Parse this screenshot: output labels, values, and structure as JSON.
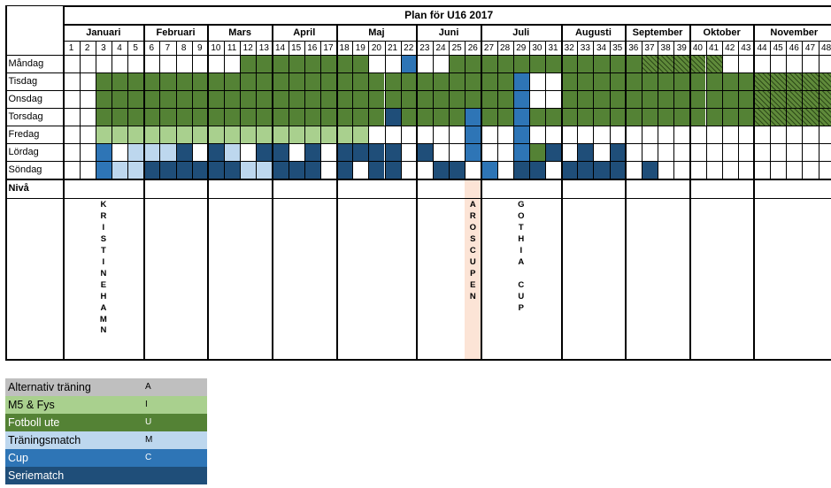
{
  "title": "Plan för U16 2017",
  "months": [
    {
      "name": "Januari",
      "first_week": 1,
      "last_week": 5
    },
    {
      "name": "Februari",
      "first_week": 6,
      "last_week": 9
    },
    {
      "name": "Mars",
      "first_week": 10,
      "last_week": 13
    },
    {
      "name": "April",
      "first_week": 14,
      "last_week": 17
    },
    {
      "name": "Maj",
      "first_week": 18,
      "last_week": 22
    },
    {
      "name": "Juni",
      "first_week": 23,
      "last_week": 26
    },
    {
      "name": "Juli",
      "first_week": 27,
      "last_week": 31
    },
    {
      "name": "Augusti",
      "first_week": 32,
      "last_week": 35
    },
    {
      "name": "September",
      "first_week": 36,
      "last_week": 39
    },
    {
      "name": "Oktober",
      "first_week": 40,
      "last_week": 43
    },
    {
      "name": "November",
      "first_week": 44,
      "last_week": 48
    }
  ],
  "weeks": [
    "1",
    "2",
    "3",
    "4",
    "5",
    "6",
    "7",
    "8",
    "9",
    "10",
    "11",
    "12",
    "13",
    "14",
    "15",
    "16",
    "17",
    "18",
    "19",
    "20",
    "21",
    "22",
    "23",
    "24",
    "25",
    "26",
    "27",
    "28",
    "29",
    "30",
    "31",
    "32",
    "33",
    "34",
    "35",
    "36",
    "37",
    "38",
    "39",
    "40",
    "41",
    "42",
    "43",
    "44",
    "45",
    "46",
    "47",
    "48"
  ],
  "days": [
    "Måndag",
    "Tisdag",
    "Onsdag",
    "Torsdag",
    "Fredag",
    "Lördag",
    "Söndag"
  ],
  "niva_label": "Nivå",
  "colors": {
    "A": "#bfbfbf",
    "I": "#a9d08e",
    "U": "#548235",
    "M": "#bdd7ee",
    "C": "#2e75b6",
    "S": "#1f4e79",
    "event_highlight": "#fce4d6",
    "hatched_green": "#548235"
  },
  "schedule": {
    "Måndag": "...........UUUUUUUU..C..UUUUUUUUUUUUHHHHH",
    "Tisdag": "..UUUUUUUUUUUUUUUUUUUUUUUUUUC..UUUUUUUUUUUUHHHHH",
    "Onsdag": "..UUUUUUUUUUUUUUUUUUUUUUUUUUC..UUUUUUUUUUUUHHHHH",
    "Torsdag": "..UUUUUUUUUUUUUUUUUUSUUUUCUUCUUUUUUUUUUUUUUHHHHH",
    "Fredag": "..IIIIIIIIIIIIIIIII......C..C..............",
    "Lördag": "..C.MMMS.SM.SS.S.SSSS.S..C..CUS.S.S..........",
    "Söndag": "..CMMSSSSSSMMSSS.S.SS..SS.C.SS.SSSS.S.........."
  },
  "events": [
    {
      "week": 3,
      "text": [
        "K",
        "R",
        "I",
        "S",
        "T",
        "I",
        "N",
        "E",
        "H",
        "A",
        "M",
        "N"
      ]
    },
    {
      "week": 26,
      "text": [
        "A",
        "R",
        "O",
        "S",
        "C",
        "U",
        "P",
        "E",
        "N"
      ]
    },
    {
      "week": 29,
      "text": [
        "G",
        "O",
        "T",
        "H",
        "I",
        "A",
        "",
        "C",
        "U",
        "P"
      ]
    }
  ],
  "legend": [
    {
      "name": "Alternativ träning",
      "code": "A",
      "color": "#bfbfbf"
    },
    {
      "name": "M5 & Fys",
      "code": "I",
      "color": "#a9d08e"
    },
    {
      "name": "Fotboll ute",
      "code": "U",
      "color": "#548235",
      "text_color": "#ffffff"
    },
    {
      "name": "Träningsmatch",
      "code": "M",
      "color": "#bdd7ee"
    },
    {
      "name": "Cup",
      "code": "C",
      "color": "#2e75b6",
      "text_color": "#ffffff"
    },
    {
      "name": "Seriematch",
      "code": "",
      "color": "#1f4e79",
      "text_color": "#ffffff"
    }
  ]
}
